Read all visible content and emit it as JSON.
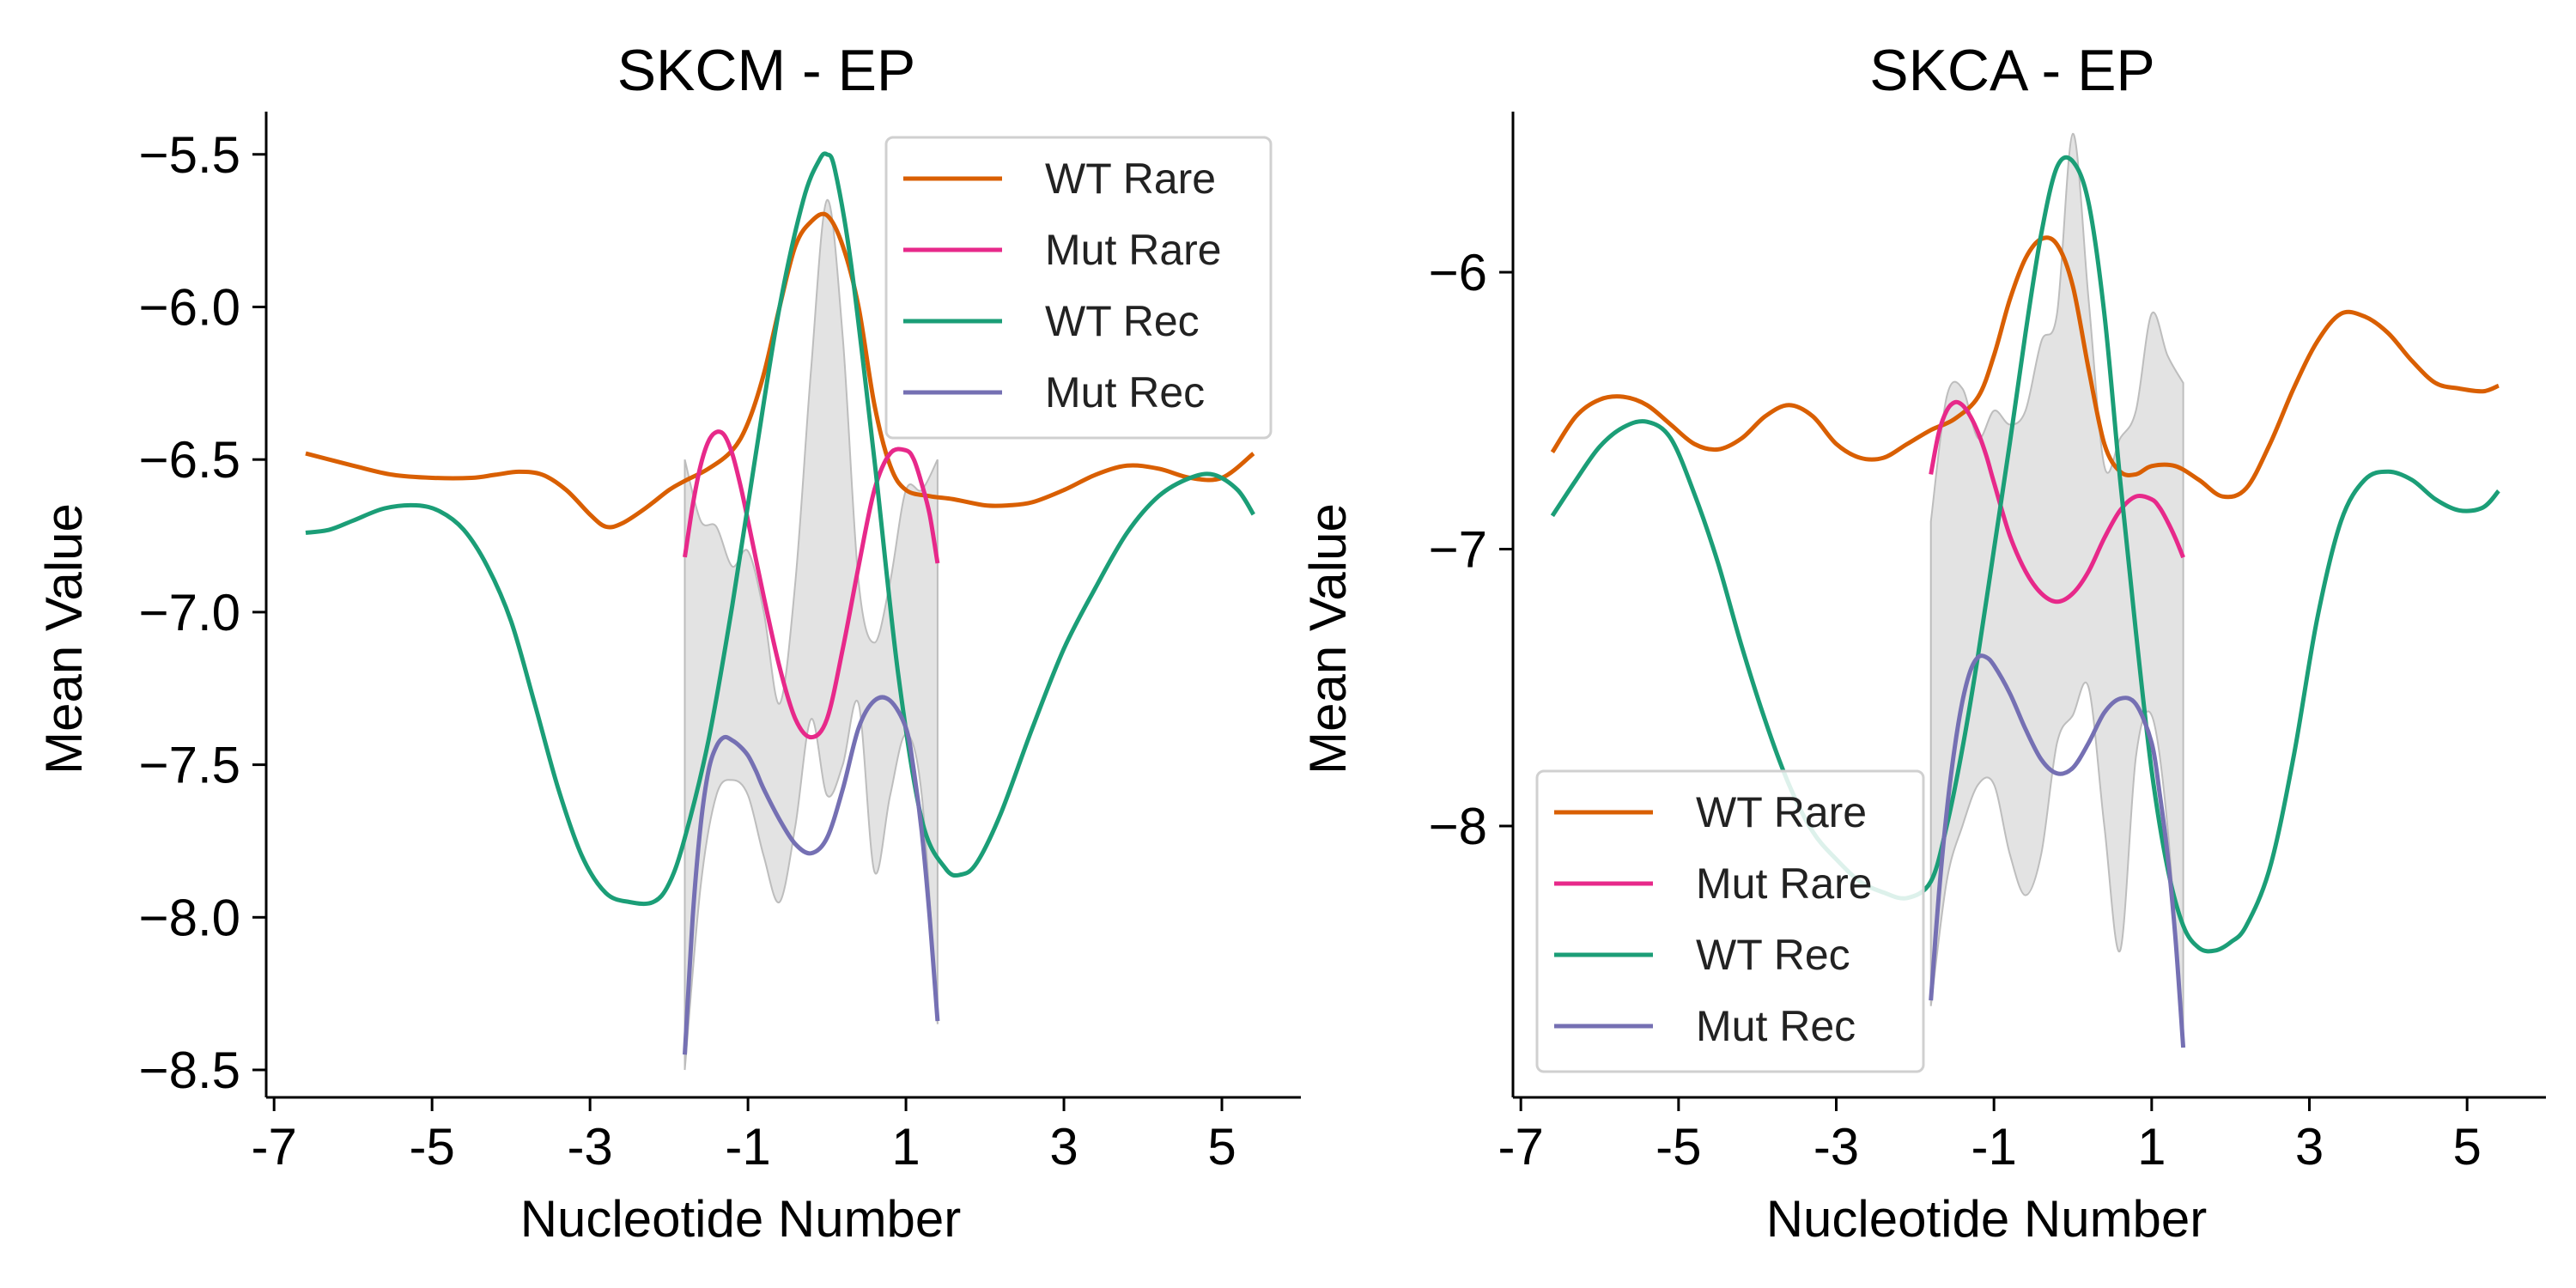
{
  "colors": {
    "WT Rare": "#d95f02",
    "Mut Rare": "#e7298a",
    "WT Rec": "#1b9e77",
    "Mut Rec": "#7570b3",
    "band": "#c8c8c8"
  },
  "chart_data": [
    {
      "type": "line",
      "title": "SKCM - EP",
      "xlabel": "Nucleotide Number",
      "ylabel": "Mean Value",
      "xlim": [
        -7.1,
        6.0
      ],
      "ylim": [
        -8.59,
        -5.36
      ],
      "xticks": [
        -7,
        -5,
        -3,
        -1,
        1,
        3,
        5
      ],
      "xtick_labels": [
        "-7",
        "-5",
        "-3",
        "-1",
        "1",
        "3",
        "5"
      ],
      "yticks": [
        -5.5,
        -6.0,
        -6.5,
        -7.0,
        -7.5,
        -8.0,
        -8.5
      ],
      "ytick_labels": [
        "−5.5",
        "−6.0",
        "−6.5",
        "−7.0",
        "−7.5",
        "−8.0",
        "−8.5"
      ],
      "legend": "top-right",
      "series": [
        {
          "name": "WT Rare",
          "x": [
            -6.6,
            -6.0,
            -5.5,
            -5.0,
            -4.5,
            -4.2,
            -3.9,
            -3.6,
            -3.3,
            -3.0,
            -2.8,
            -2.6,
            -2.3,
            -2.0,
            -1.8,
            -1.5,
            -1.2,
            -1.0,
            -0.8,
            -0.6,
            -0.4,
            -0.2,
            0.0,
            0.2,
            0.4,
            0.6,
            0.8,
            1.0,
            1.3,
            1.6,
            2.0,
            2.3,
            2.6,
            3.0,
            3.4,
            3.8,
            4.2,
            4.6,
            5.0,
            5.4
          ],
          "y": [
            -6.48,
            -6.52,
            -6.55,
            -6.56,
            -6.56,
            -6.55,
            -6.54,
            -6.55,
            -6.6,
            -6.68,
            -6.72,
            -6.71,
            -6.66,
            -6.6,
            -6.57,
            -6.53,
            -6.47,
            -6.38,
            -6.22,
            -6.0,
            -5.8,
            -5.72,
            -5.7,
            -5.8,
            -6.0,
            -6.32,
            -6.52,
            -6.6,
            -6.62,
            -6.63,
            -6.65,
            -6.65,
            -6.64,
            -6.6,
            -6.55,
            -6.52,
            -6.53,
            -6.56,
            -6.56,
            -6.48
          ]
        },
        {
          "name": "Mut Rare",
          "x": [
            -1.8,
            -1.7,
            -1.6,
            -1.5,
            -1.4,
            -1.3,
            -1.2,
            -1.1,
            -1.0,
            -0.8,
            -0.6,
            -0.4,
            -0.2,
            0.0,
            0.2,
            0.4,
            0.6,
            0.8,
            1.0,
            1.1,
            1.2,
            1.3,
            1.4
          ],
          "y": [
            -6.82,
            -6.65,
            -6.52,
            -6.44,
            -6.41,
            -6.42,
            -6.48,
            -6.58,
            -6.7,
            -6.95,
            -7.18,
            -7.35,
            -7.41,
            -7.35,
            -7.12,
            -6.85,
            -6.6,
            -6.48,
            -6.47,
            -6.5,
            -6.58,
            -6.68,
            -6.84
          ]
        },
        {
          "name": "WT Rec",
          "x": [
            -6.6,
            -6.3,
            -6.0,
            -5.6,
            -5.2,
            -4.9,
            -4.6,
            -4.3,
            -4.0,
            -3.7,
            -3.4,
            -3.1,
            -2.8,
            -2.5,
            -2.2,
            -2.0,
            -1.8,
            -1.5,
            -1.2,
            -0.9,
            -0.6,
            -0.3,
            -0.1,
            0.0,
            0.1,
            0.3,
            0.6,
            0.9,
            1.2,
            1.5,
            1.7,
            1.9,
            2.2,
            2.6,
            3.0,
            3.4,
            3.8,
            4.2,
            4.6,
            4.9,
            5.2,
            5.4
          ],
          "y": [
            -6.74,
            -6.73,
            -6.7,
            -6.66,
            -6.65,
            -6.67,
            -6.73,
            -6.85,
            -7.03,
            -7.3,
            -7.58,
            -7.8,
            -7.92,
            -7.95,
            -7.95,
            -7.89,
            -7.74,
            -7.42,
            -6.98,
            -6.48,
            -6.0,
            -5.65,
            -5.52,
            -5.5,
            -5.55,
            -5.85,
            -6.5,
            -7.2,
            -7.68,
            -7.84,
            -7.86,
            -7.82,
            -7.66,
            -7.38,
            -7.12,
            -6.92,
            -6.74,
            -6.62,
            -6.56,
            -6.55,
            -6.6,
            -6.68
          ]
        },
        {
          "name": "Mut Rec",
          "x": [
            -1.8,
            -1.7,
            -1.6,
            -1.5,
            -1.4,
            -1.3,
            -1.2,
            -1.1,
            -1.0,
            -0.9,
            -0.8,
            -0.6,
            -0.4,
            -0.2,
            0.0,
            0.2,
            0.4,
            0.6,
            0.8,
            1.0,
            1.1,
            1.2,
            1.3,
            1.4
          ],
          "y": [
            -8.45,
            -8.0,
            -7.7,
            -7.52,
            -7.44,
            -7.41,
            -7.42,
            -7.44,
            -7.47,
            -7.52,
            -7.58,
            -7.68,
            -7.76,
            -7.79,
            -7.74,
            -7.58,
            -7.38,
            -7.29,
            -7.29,
            -7.38,
            -7.52,
            -7.72,
            -8.0,
            -8.34
          ]
        }
      ],
      "band": {
        "x": [
          -1.8,
          -1.6,
          -1.4,
          -1.2,
          -1.0,
          -0.8,
          -0.6,
          -0.4,
          -0.2,
          0.0,
          0.2,
          0.4,
          0.6,
          0.8,
          1.0,
          1.2,
          1.4
        ],
        "upper": [
          -6.5,
          -6.7,
          -6.72,
          -6.85,
          -6.8,
          -7.0,
          -7.3,
          -6.9,
          -6.2,
          -5.65,
          -6.1,
          -6.9,
          -7.1,
          -6.9,
          -6.6,
          -6.6,
          -6.5
        ],
        "lower": [
          -8.5,
          -7.9,
          -7.6,
          -7.55,
          -7.6,
          -7.8,
          -7.95,
          -7.7,
          -7.35,
          -7.6,
          -7.5,
          -7.3,
          -7.85,
          -7.6,
          -7.4,
          -7.6,
          -8.35
        ]
      }
    },
    {
      "type": "line",
      "title": "SKCA - EP",
      "xlabel": "Nucleotide Number",
      "ylabel": "Mean Value",
      "xlim": [
        -7.1,
        6.0
      ],
      "ylim": [
        -8.98,
        -5.42
      ],
      "xticks": [
        -7,
        -5,
        -3,
        -1,
        1,
        3,
        5
      ],
      "xtick_labels": [
        "-7",
        "-5",
        "-3",
        "-1",
        "1",
        "3",
        "5"
      ],
      "yticks": [
        -6,
        -7,
        -8
      ],
      "ytick_labels": [
        "−6",
        "−7",
        "−8"
      ],
      "legend": "bottom-left",
      "series": [
        {
          "name": "WT Rare",
          "x": [
            -6.6,
            -6.3,
            -6.0,
            -5.7,
            -5.4,
            -5.1,
            -4.8,
            -4.5,
            -4.2,
            -3.9,
            -3.6,
            -3.3,
            -3.0,
            -2.7,
            -2.4,
            -2.1,
            -1.8,
            -1.5,
            -1.2,
            -1.0,
            -0.8,
            -0.6,
            -0.4,
            -0.2,
            0.0,
            0.2,
            0.4,
            0.6,
            0.8,
            1.0,
            1.3,
            1.6,
            1.9,
            2.2,
            2.5,
            2.8,
            3.1,
            3.4,
            3.7,
            4.0,
            4.3,
            4.6,
            4.9,
            5.2,
            5.4
          ],
          "y": [
            -6.65,
            -6.52,
            -6.46,
            -6.45,
            -6.48,
            -6.55,
            -6.62,
            -6.64,
            -6.6,
            -6.52,
            -6.48,
            -6.52,
            -6.62,
            -6.67,
            -6.67,
            -6.62,
            -6.57,
            -6.53,
            -6.45,
            -6.3,
            -6.1,
            -5.95,
            -5.88,
            -5.9,
            -6.05,
            -6.35,
            -6.62,
            -6.72,
            -6.73,
            -6.7,
            -6.7,
            -6.75,
            -6.81,
            -6.78,
            -6.62,
            -6.42,
            -6.25,
            -6.15,
            -6.16,
            -6.22,
            -6.32,
            -6.4,
            -6.42,
            -6.43,
            -6.41
          ]
        },
        {
          "name": "Mut Rare",
          "x": [
            -1.8,
            -1.7,
            -1.6,
            -1.5,
            -1.4,
            -1.3,
            -1.2,
            -1.1,
            -1.0,
            -0.8,
            -0.6,
            -0.4,
            -0.2,
            0.0,
            0.2,
            0.4,
            0.6,
            0.8,
            1.0,
            1.1,
            1.2,
            1.3,
            1.4
          ],
          "y": [
            -6.73,
            -6.58,
            -6.5,
            -6.47,
            -6.48,
            -6.52,
            -6.58,
            -6.66,
            -6.76,
            -6.95,
            -7.08,
            -7.16,
            -7.19,
            -7.16,
            -7.08,
            -6.96,
            -6.86,
            -6.81,
            -6.82,
            -6.85,
            -6.9,
            -6.96,
            -7.03
          ]
        },
        {
          "name": "WT Rec",
          "x": [
            -6.6,
            -6.3,
            -6.0,
            -5.7,
            -5.4,
            -5.1,
            -4.8,
            -4.5,
            -4.2,
            -3.9,
            -3.6,
            -3.3,
            -3.0,
            -2.7,
            -2.4,
            -2.1,
            -1.8,
            -1.6,
            -1.4,
            -1.2,
            -1.0,
            -0.8,
            -0.6,
            -0.4,
            -0.2,
            0.0,
            0.2,
            0.4,
            0.6,
            0.8,
            1.0,
            1.2,
            1.4,
            1.6,
            1.8,
            2.0,
            2.2,
            2.5,
            2.8,
            3.1,
            3.4,
            3.7,
            4.0,
            4.3,
            4.6,
            4.9,
            5.2,
            5.4
          ],
          "y": [
            -6.88,
            -6.75,
            -6.63,
            -6.56,
            -6.54,
            -6.6,
            -6.8,
            -7.05,
            -7.35,
            -7.62,
            -7.85,
            -8.02,
            -8.12,
            -8.2,
            -8.24,
            -8.26,
            -8.2,
            -8.0,
            -7.72,
            -7.38,
            -7.0,
            -6.62,
            -6.22,
            -5.86,
            -5.62,
            -5.6,
            -5.75,
            -6.15,
            -6.75,
            -7.3,
            -7.8,
            -8.15,
            -8.36,
            -8.44,
            -8.45,
            -8.42,
            -8.36,
            -8.15,
            -7.75,
            -7.25,
            -6.9,
            -6.75,
            -6.72,
            -6.75,
            -6.82,
            -6.86,
            -6.85,
            -6.79
          ]
        },
        {
          "name": "Mut Rec",
          "x": [
            -1.8,
            -1.7,
            -1.6,
            -1.5,
            -1.4,
            -1.3,
            -1.2,
            -1.1,
            -1.0,
            -0.8,
            -0.6,
            -0.4,
            -0.2,
            0.0,
            0.2,
            0.4,
            0.6,
            0.8,
            1.0,
            1.1,
            1.2,
            1.3,
            1.4
          ],
          "y": [
            -8.63,
            -8.25,
            -7.95,
            -7.72,
            -7.55,
            -7.44,
            -7.39,
            -7.39,
            -7.42,
            -7.52,
            -7.65,
            -7.76,
            -7.81,
            -7.79,
            -7.7,
            -7.59,
            -7.54,
            -7.56,
            -7.7,
            -7.88,
            -8.1,
            -8.4,
            -8.8
          ]
        }
      ],
      "band": {
        "x": [
          -1.8,
          -1.6,
          -1.4,
          -1.2,
          -1.0,
          -0.8,
          -0.6,
          -0.4,
          -0.2,
          0.0,
          0.2,
          0.4,
          0.6,
          0.8,
          1.0,
          1.2,
          1.4
        ],
        "upper": [
          -6.9,
          -6.45,
          -6.42,
          -6.6,
          -6.5,
          -6.55,
          -6.5,
          -6.25,
          -6.15,
          -5.5,
          -6.1,
          -6.7,
          -6.6,
          -6.5,
          -6.15,
          -6.3,
          -6.4
        ],
        "lower": [
          -8.65,
          -8.2,
          -8.0,
          -7.85,
          -7.85,
          -8.1,
          -8.25,
          -8.1,
          -7.7,
          -7.6,
          -7.5,
          -8.0,
          -8.45,
          -7.75,
          -7.6,
          -8.0,
          -8.8
        ]
      }
    }
  ]
}
